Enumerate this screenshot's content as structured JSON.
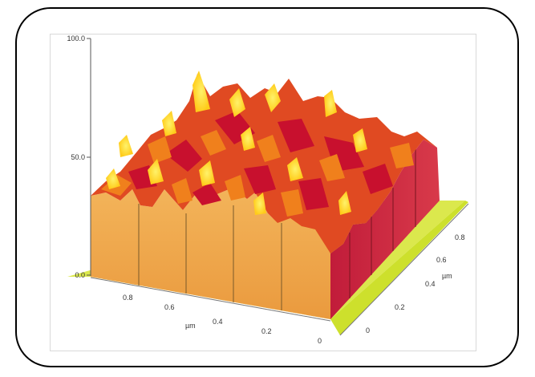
{
  "chart_data": {
    "type": "surface-3d",
    "z_axis": {
      "ticks": [
        "100.0",
        "50.0",
        "0.0"
      ],
      "range": [
        0,
        100
      ]
    },
    "x_axis": {
      "label": "µm",
      "ticks": [
        "0.8",
        "0.6",
        "0.4",
        "0.2",
        "0"
      ],
      "range": [
        0,
        1
      ]
    },
    "y_axis": {
      "label": "µm",
      "ticks": [
        "0",
        "0.2",
        "0.4",
        "0.6",
        "0.8"
      ],
      "range": [
        0,
        1
      ]
    },
    "colors": {
      "peak": "#ffee22",
      "mid": "#f07a18",
      "low": "#c8102e",
      "floor": "#d7e63a",
      "front_face": "#f3a94a",
      "side_face": "#c8233c"
    }
  }
}
